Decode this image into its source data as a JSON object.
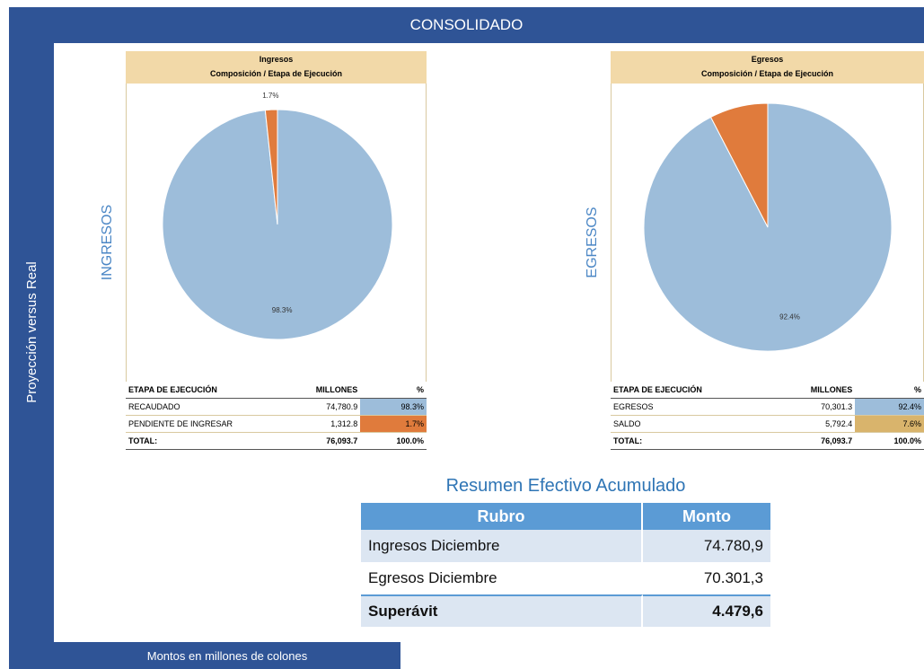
{
  "header": {
    "title": "CONSOLIDADO",
    "side_label": "Proyección versus Real",
    "footer": "Montos en millones de colones"
  },
  "chart_data": [
    {
      "type": "pie",
      "title": "Ingresos",
      "subtitle": "Composición / Etapa de Ejecución",
      "side_label": "INGRESOS",
      "values": [
        98.3,
        1.7
      ],
      "value_labels": [
        "98.3%",
        "1.7%"
      ],
      "colors": [
        "#9dbdda",
        "#e07b3c"
      ],
      "table": {
        "header": [
          "ETAPA DE EJECUCIÓN",
          "MILLONES",
          "%"
        ],
        "rows": [
          [
            "RECAUDADO",
            "74,780.9",
            "98.3%"
          ],
          [
            "PENDIENTE DE INGRESAR",
            "1,312.8",
            "1.7%"
          ]
        ],
        "total": [
          "TOTAL:",
          "76,093.7",
          "100.0%"
        ],
        "cell_colors": [
          "#9dbdda",
          "#e07b3c"
        ]
      }
    },
    {
      "type": "pie",
      "title": "Egresos",
      "subtitle": "Composición / Etapa de Ejecución",
      "side_label": "EGRESOS",
      "values": [
        92.4,
        7.6
      ],
      "value_labels": [
        "92.4%",
        null
      ],
      "colors": [
        "#9dbdda",
        "#e07b3c"
      ],
      "table": {
        "header": [
          "ETAPA DE EJECUCIÓN",
          "MILLONES",
          "%"
        ],
        "rows": [
          [
            "EGRESOS",
            "70,301.3",
            "92.4%"
          ],
          [
            "SALDO",
            "5,792.4",
            "7.6%"
          ]
        ],
        "total": [
          "TOTAL:",
          "76,093.7",
          "100.0%"
        ],
        "cell_colors": [
          "#9dbdda",
          "#d9b46c"
        ]
      }
    }
  ],
  "summary": {
    "title": "Resumen Efectivo Acumulado",
    "header": [
      "Rubro",
      "Monto"
    ],
    "rows": [
      [
        "Ingresos Diciembre",
        "74.780,9"
      ],
      [
        "Egresos Diciembre",
        "70.301,3"
      ],
      [
        "Superávit",
        "4.479,6"
      ]
    ]
  }
}
